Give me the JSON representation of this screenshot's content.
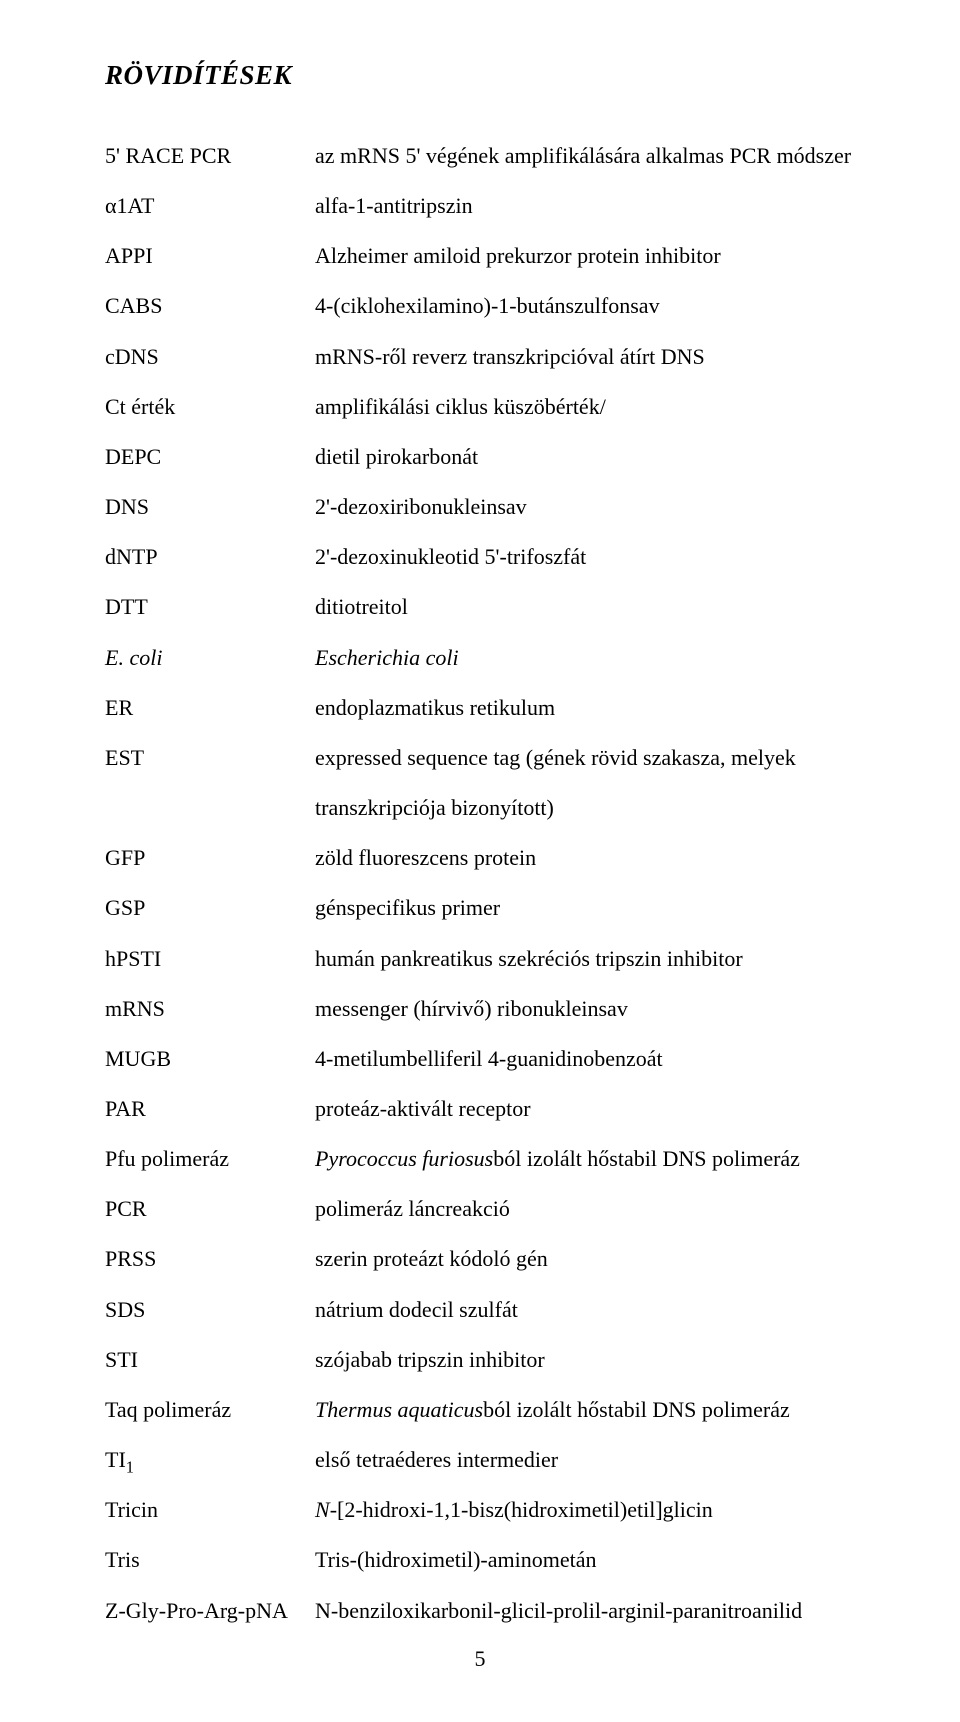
{
  "title": "RÖVIDÍTÉSEK",
  "page_number": "5",
  "text_color": "#000000",
  "background_color": "#ffffff",
  "body_fontsize": 22,
  "title_fontsize": 27,
  "line_height": 2.28,
  "entries": [
    {
      "abbr": "5' RACE PCR",
      "def": "az mRNS 5' végének amplifikálására alkalmas PCR módszer"
    },
    {
      "abbr": "α1AT",
      "def": "alfa-1-antitripszin"
    },
    {
      "abbr": "APPI",
      "def": "Alzheimer amiloid prekurzor protein inhibitor"
    },
    {
      "abbr": "CABS",
      "def": "4-(ciklohexilamino)-1-butánszulfonsav"
    },
    {
      "abbr": "cDNS",
      "def": "mRNS-ről reverz transzkripcióval átírt DNS"
    },
    {
      "abbr": "Ct érték",
      "def": "amplifikálási ciklus küszöbérték/"
    },
    {
      "abbr": "DEPC",
      "def": "dietil pirokarbonát"
    },
    {
      "abbr": "DNS",
      "def": "2'-dezoxiribonukleinsav"
    },
    {
      "abbr": "dNTP",
      "def": "2'-dezoxinukleotid 5'-trifoszfát"
    },
    {
      "abbr": "DTT",
      "def": "ditiotreitol"
    },
    {
      "abbr": "E. coli",
      "abbr_italic": true,
      "def": "Escherichia coli",
      "def_italic": true
    },
    {
      "abbr": "ER",
      "def": "endoplazmatikus retikulum"
    },
    {
      "abbr": "EST",
      "def": "expressed sequence tag (gének rövid szakasza, melyek transzkripciója bizonyított)"
    },
    {
      "abbr": "GFP",
      "def": "zöld fluoreszcens protein"
    },
    {
      "abbr": "GSP",
      "def": "génspecifikus primer"
    },
    {
      "abbr": "hPSTI",
      "def": "humán pankreatikus szekréciós tripszin inhibitor"
    },
    {
      "abbr": "mRNS",
      "def": "messenger (hírvivő) ribonukleinsav"
    },
    {
      "abbr": "MUGB",
      "def": "4-metilumbelliferil 4-guanidinobenzoát"
    },
    {
      "abbr": "PAR",
      "def": "proteáz-aktivált receptor"
    },
    {
      "abbr": "Pfu polimeráz",
      "def_prefix_italic": "Pyrococcus furiosus",
      "def_suffix": "ból izolált hőstabil DNS polimeráz"
    },
    {
      "abbr": "PCR",
      "def": "polimeráz láncreakció"
    },
    {
      "abbr": "PRSS",
      "def": "szerin proteázt kódoló gén"
    },
    {
      "abbr": "SDS",
      "def": "nátrium dodecil szulfát"
    },
    {
      "abbr": "STI",
      "def": "szójabab tripszin inhibitor"
    },
    {
      "abbr": "Taq polimeráz",
      "def_prefix_italic": "Thermus aquaticus",
      "def_suffix": "ból izolált hőstabil DNS polimeráz"
    },
    {
      "abbr": "TI",
      "abbr_sub": "1",
      "def": "első tetraéderes intermedier"
    },
    {
      "abbr": "Tricin",
      "def_prefix_italic": "N",
      "def_suffix": "-[2-hidroxi-1,1-bisz(hidroximetil)etil]glicin"
    },
    {
      "abbr": "Tris",
      "def": "Tris-(hidroximetil)-aminometán"
    },
    {
      "abbr": "Z-Gly-Pro-Arg-pNA",
      "def": "N-benziloxikarbonil-glicil-prolil-arginil-paranitroanilid"
    }
  ]
}
